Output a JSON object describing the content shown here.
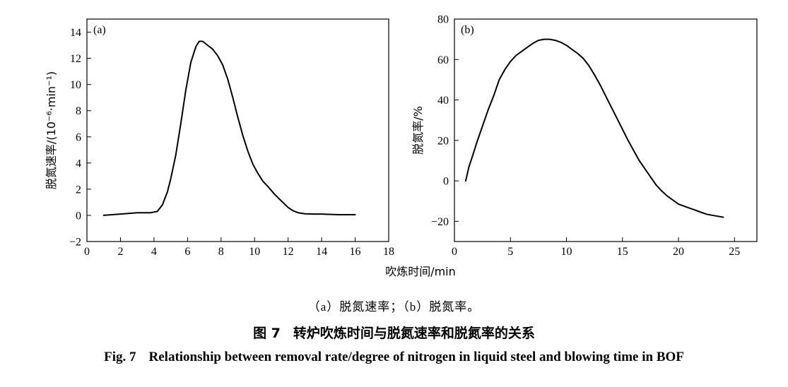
{
  "shared_xlabel": "吹炼时间/min",
  "sub_caption": "（a）脱氮速率；（b）脱氮率。",
  "caption_cn": {
    "number": "图 7",
    "text": "转炉吹炼时间与脱氮速率和脱氮率的关系"
  },
  "caption_en": {
    "number": "Fig. 7",
    "text": "Relationship between removal rate/degree of nitrogen in liquid steel and blowing time in BOF"
  },
  "colors": {
    "line": "#000000",
    "axis": "#000000",
    "background": "#ffffff"
  },
  "chart_data": [
    {
      "type": "line",
      "panel_label": "(a)",
      "title": "",
      "xlabel": "吹炼时间/min",
      "ylabel": "脱氮速率/(10⁻⁶·min⁻¹)",
      "xlim": [
        0,
        18
      ],
      "ylim": [
        -2,
        15
      ],
      "xticks": [
        0,
        2,
        4,
        6,
        8,
        10,
        12,
        14,
        16,
        18
      ],
      "yticks": [
        -2,
        0,
        2,
        4,
        6,
        8,
        10,
        12,
        14
      ],
      "ytick_labels": [
        "−2",
        "0",
        "2",
        "4",
        "6",
        "8",
        "10",
        "12",
        "14"
      ],
      "grid": false,
      "series": [
        {
          "x": [
            1.0,
            2.0,
            3.0,
            3.8,
            4.2,
            4.5,
            4.8,
            5.0,
            5.3,
            5.6,
            5.9,
            6.2,
            6.5,
            6.7,
            6.9,
            7.2,
            7.5,
            7.8,
            8.1,
            8.4,
            8.7,
            9.0,
            9.3,
            9.6,
            9.9,
            10.2,
            10.5,
            10.8,
            11.2,
            11.6,
            12.0,
            12.3,
            12.6,
            13.0,
            13.5,
            14.0,
            15.0,
            16.0
          ],
          "y": [
            0.0,
            0.1,
            0.2,
            0.2,
            0.3,
            0.8,
            1.8,
            2.8,
            4.6,
            7.0,
            9.6,
            11.7,
            12.9,
            13.3,
            13.3,
            13.0,
            12.7,
            12.2,
            11.5,
            10.4,
            9.0,
            7.5,
            6.1,
            4.9,
            3.9,
            3.2,
            2.6,
            2.2,
            1.6,
            1.1,
            0.6,
            0.35,
            0.2,
            0.12,
            0.1,
            0.1,
            0.05,
            0.05
          ]
        }
      ]
    },
    {
      "type": "line",
      "panel_label": "(b)",
      "title": "",
      "xlabel": "吹炼时间/min",
      "ylabel": "脱氮率/%",
      "xlim": [
        0,
        27
      ],
      "ylim": [
        -30,
        80
      ],
      "xticks": [
        0,
        5,
        10,
        15,
        20,
        25
      ],
      "yticks": [
        -20,
        0,
        20,
        40,
        60,
        80
      ],
      "ytick_labels": [
        "−20",
        "0",
        "20",
        "40",
        "60",
        "80"
      ],
      "grid": false,
      "series": [
        {
          "x": [
            1.0,
            1.3,
            1.6,
            2.0,
            2.5,
            3.0,
            3.5,
            4.0,
            4.5,
            5.0,
            5.5,
            6.0,
            6.5,
            7.0,
            7.5,
            8.0,
            8.5,
            9.0,
            9.5,
            10.0,
            10.5,
            11.0,
            11.5,
            12.0,
            12.5,
            13.0,
            13.5,
            14.0,
            14.5,
            15.0,
            15.5,
            16.0,
            16.5,
            17.0,
            17.5,
            18.0,
            18.5,
            19.0,
            19.5,
            20.0,
            20.5,
            21.0,
            21.5,
            22.0,
            22.5,
            23.0,
            23.5,
            24.0
          ],
          "y": [
            0,
            7,
            12,
            19,
            27,
            35,
            42,
            50,
            55,
            59,
            62,
            64,
            66,
            68,
            69.5,
            70,
            70,
            69.5,
            68.5,
            67,
            65,
            63,
            60.5,
            57,
            52.5,
            47.5,
            42,
            36.5,
            31,
            25.5,
            20,
            15,
            10,
            6,
            2,
            -2,
            -5,
            -7.5,
            -9.5,
            -11.5,
            -12.5,
            -13.5,
            -14.5,
            -15.5,
            -16.5,
            -17,
            -17.5,
            -18
          ]
        }
      ]
    }
  ]
}
